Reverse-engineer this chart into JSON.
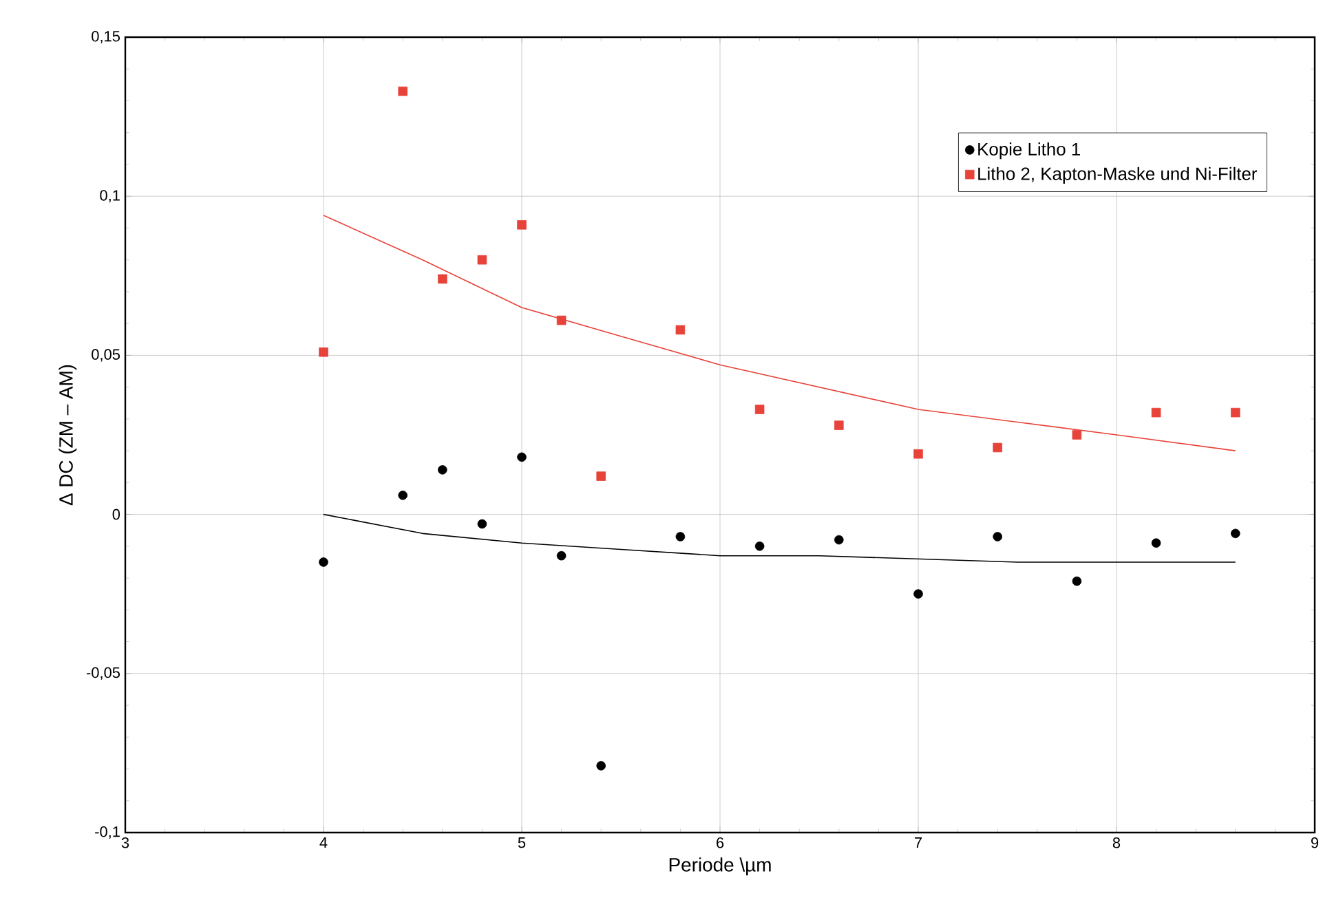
{
  "chart_data": {
    "type": "scatter",
    "xlabel": "Periode \\µm",
    "ylabel": "Δ DC (ZM – AM)",
    "xlim": [
      3,
      9
    ],
    "xticks": [
      3,
      4,
      5,
      6,
      7,
      8,
      9
    ],
    "ylim": [
      -0.1,
      0.15
    ],
    "yticks": [
      {
        "value": -0.1,
        "label": "-0,1"
      },
      {
        "value": -0.05,
        "label": "-0,05"
      },
      {
        "value": 0,
        "label": "0"
      },
      {
        "value": 0.05,
        "label": "0,05"
      },
      {
        "value": 0.1,
        "label": "0,1"
      },
      {
        "value": 0.15,
        "label": "0,15"
      }
    ],
    "grid": true,
    "legend": "top right",
    "series": [
      {
        "name": "Kopie Litho 1",
        "marker": "circle",
        "color": "#000000",
        "x": [
          4,
          4.4,
          4.6,
          4.8,
          5.0,
          5.2,
          5.4,
          5.8,
          6.2,
          6.6,
          7.0,
          7.4,
          7.8,
          8.2,
          8.6
        ],
        "values": [
          -0.015,
          0.006,
          0.014,
          -0.003,
          0.018,
          -0.013,
          -0.079,
          -0.007,
          -0.01,
          -0.008,
          -0.025,
          -0.007,
          -0.021,
          -0.009,
          -0.006
        ]
      },
      {
        "name": "Litho 2, Kapton-Maske und Ni-Filter",
        "marker": "square",
        "color": "#e8433a",
        "x": [
          4,
          4.4,
          4.6,
          4.8,
          5.0,
          5.2,
          5.4,
          5.8,
          6.2,
          6.6,
          7.0,
          7.4,
          7.8,
          8.2,
          8.6
        ],
        "values": [
          0.051,
          0.133,
          0.074,
          0.08,
          0.091,
          0.061,
          0.012,
          0.058,
          0.033,
          0.028,
          0.019,
          0.021,
          0.025,
          0.032,
          0.032
        ]
      },
      {
        "type": "line",
        "color": "#000000",
        "x": [
          4,
          4.5,
          5,
          5.5,
          6,
          6.5,
          7,
          7.5,
          8,
          8.6
        ],
        "values": [
          0.0,
          -0.006,
          -0.009,
          -0.011,
          -0.013,
          -0.013,
          -0.014,
          -0.015,
          -0.015,
          -0.015
        ]
      },
      {
        "type": "line",
        "color": "#e8433a",
        "x": [
          4,
          4.5,
          5,
          5.5,
          6,
          6.5,
          7,
          7.5,
          8,
          8.6
        ],
        "values": [
          0.094,
          0.08,
          0.065,
          0.056,
          0.047,
          0.04,
          0.033,
          0.029,
          0.025,
          0.02
        ]
      }
    ]
  }
}
